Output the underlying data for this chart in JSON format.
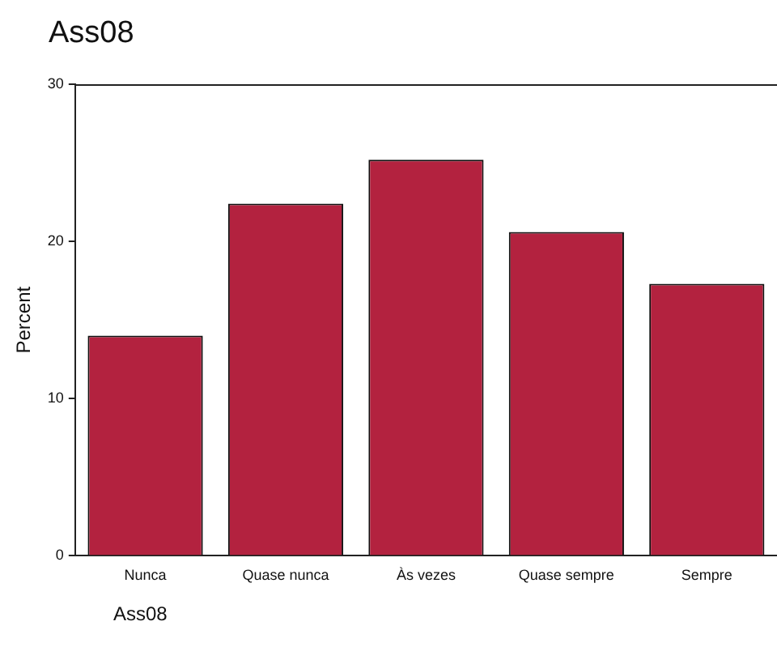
{
  "chart_data": {
    "type": "bar",
    "title": "Ass08",
    "ylabel": "Percent",
    "categories": [
      "Nunca",
      "Quase nunca",
      "Às vezes",
      "Quase sempre",
      "Sempre"
    ],
    "values": [
      14.0,
      22.4,
      25.2,
      20.6,
      17.3
    ],
    "color": "#b3223f",
    "ylim": [
      0,
      30
    ],
    "yticks": [
      0,
      10,
      20,
      30
    ],
    "grid": false,
    "legend": false,
    "annotations": [
      "Ass08"
    ]
  }
}
